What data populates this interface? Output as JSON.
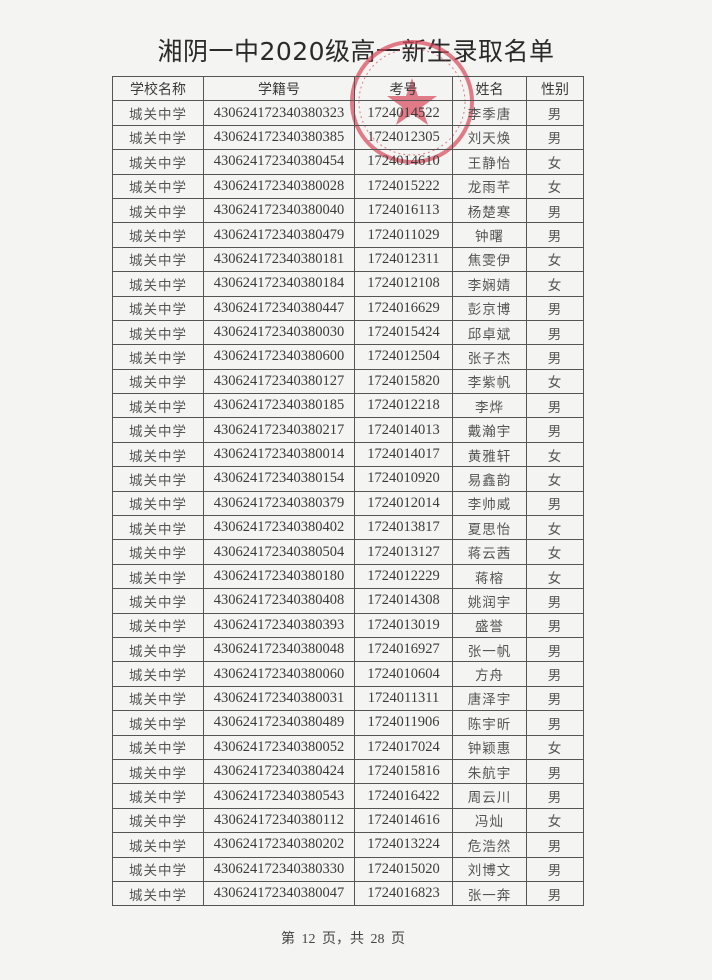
{
  "document": {
    "title": "湘阴一中2020级高一新生录取名单",
    "footer": "第 12 页，共 28 页",
    "stamp_color": "#d9475a",
    "columns": [
      "学校名称",
      "学籍号",
      "考号",
      "姓名",
      "性别"
    ],
    "rows": [
      [
        "城关中学",
        "430624172340380323",
        "1724014522",
        "李季唐",
        "男"
      ],
      [
        "城关中学",
        "430624172340380385",
        "1724012305",
        "刘天焕",
        "男"
      ],
      [
        "城关中学",
        "430624172340380454",
        "1724014610",
        "王静怡",
        "女"
      ],
      [
        "城关中学",
        "430624172340380028",
        "1724015222",
        "龙雨芊",
        "女"
      ],
      [
        "城关中学",
        "430624172340380040",
        "1724016113",
        "杨楚寒",
        "男"
      ],
      [
        "城关中学",
        "430624172340380479",
        "1724011029",
        "钟曙",
        "男"
      ],
      [
        "城关中学",
        "430624172340380181",
        "1724012311",
        "焦雯伊",
        "女"
      ],
      [
        "城关中学",
        "430624172340380184",
        "1724012108",
        "李娴婧",
        "女"
      ],
      [
        "城关中学",
        "430624172340380447",
        "1724016629",
        "彭京博",
        "男"
      ],
      [
        "城关中学",
        "430624172340380030",
        "1724015424",
        "邱卓斌",
        "男"
      ],
      [
        "城关中学",
        "430624172340380600",
        "1724012504",
        "张子杰",
        "男"
      ],
      [
        "城关中学",
        "430624172340380127",
        "1724015820",
        "李紫帆",
        "女"
      ],
      [
        "城关中学",
        "430624172340380185",
        "1724012218",
        "李烨",
        "男"
      ],
      [
        "城关中学",
        "430624172340380217",
        "1724014013",
        "戴瀚宇",
        "男"
      ],
      [
        "城关中学",
        "430624172340380014",
        "1724014017",
        "黄雅轩",
        "女"
      ],
      [
        "城关中学",
        "430624172340380154",
        "1724010920",
        "易鑫韵",
        "女"
      ],
      [
        "城关中学",
        "430624172340380379",
        "1724012014",
        "李帅威",
        "男"
      ],
      [
        "城关中学",
        "430624172340380402",
        "1724013817",
        "夏思怡",
        "女"
      ],
      [
        "城关中学",
        "430624172340380504",
        "1724013127",
        "蒋云茜",
        "女"
      ],
      [
        "城关中学",
        "430624172340380180",
        "1724012229",
        "蒋榕",
        "女"
      ],
      [
        "城关中学",
        "430624172340380408",
        "1724014308",
        "姚润宇",
        "男"
      ],
      [
        "城关中学",
        "430624172340380393",
        "1724013019",
        "盛誉",
        "男"
      ],
      [
        "城关中学",
        "430624172340380048",
        "1724016927",
        "张一帆",
        "男"
      ],
      [
        "城关中学",
        "430624172340380060",
        "1724010604",
        "方舟",
        "男"
      ],
      [
        "城关中学",
        "430624172340380031",
        "1724011311",
        "唐泽宇",
        "男"
      ],
      [
        "城关中学",
        "430624172340380489",
        "1724011906",
        "陈宇昕",
        "男"
      ],
      [
        "城关中学",
        "430624172340380052",
        "1724017024",
        "钟颖惠",
        "女"
      ],
      [
        "城关中学",
        "430624172340380424",
        "1724015816",
        "朱航宇",
        "男"
      ],
      [
        "城关中学",
        "430624172340380543",
        "1724016422",
        "周云川",
        "男"
      ],
      [
        "城关中学",
        "430624172340380112",
        "1724014616",
        "冯灿",
        "女"
      ],
      [
        "城关中学",
        "430624172340380202",
        "1724013224",
        "危浩然",
        "男"
      ],
      [
        "城关中学",
        "430624172340380330",
        "1724015020",
        "刘博文",
        "男"
      ],
      [
        "城关中学",
        "430624172340380047",
        "1724016823",
        "张一奔",
        "男"
      ]
    ]
  }
}
